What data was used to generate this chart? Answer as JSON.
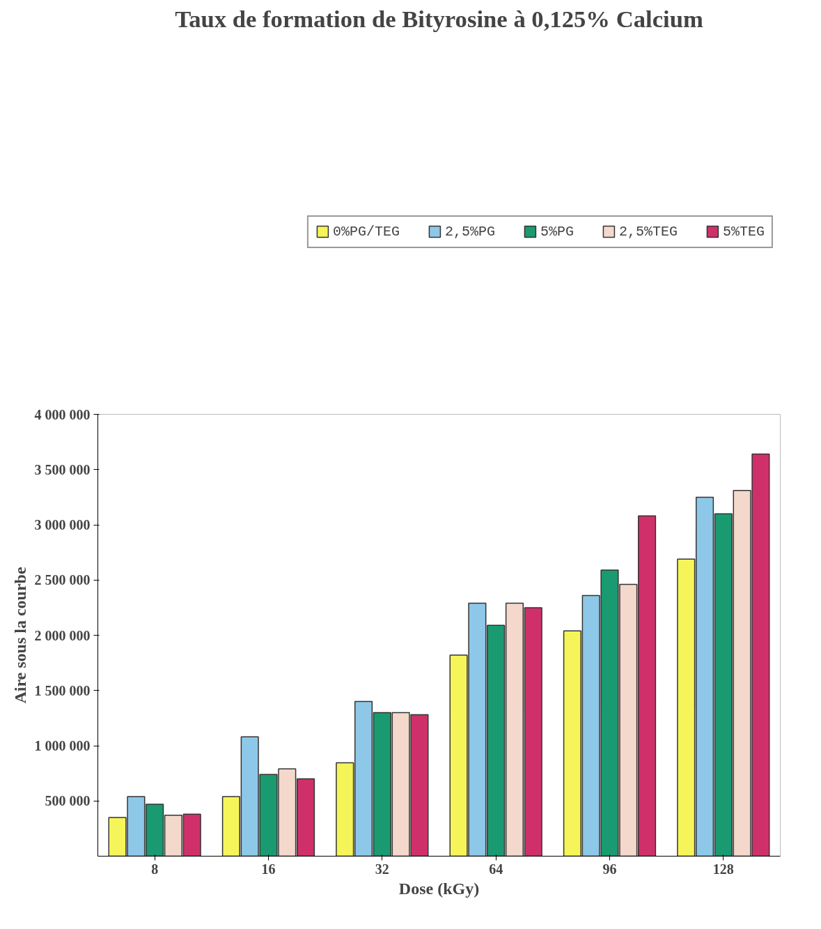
{
  "chart_data": {
    "type": "bar",
    "title": "Taux de formation de Bityrosine à 0,125% Calcium",
    "xlabel": "Dose (kGy)",
    "ylabel": "Aire sous la courbe",
    "categories": [
      "8",
      "16",
      "32",
      "64",
      "96",
      "128"
    ],
    "series": [
      {
        "name": "0%PG/TEG",
        "color": "#f5f55a",
        "values": [
          350000,
          540000,
          845000,
          1820000,
          2040000,
          2690000
        ]
      },
      {
        "name": "2,5%PG",
        "color": "#8ec8e8",
        "values": [
          540000,
          1080000,
          1400000,
          2290000,
          2360000,
          3250000
        ]
      },
      {
        "name": "5%PG",
        "color": "#1a9a70",
        "values": [
          470000,
          740000,
          1300000,
          2090000,
          2590000,
          3100000
        ]
      },
      {
        "name": "2,5%TEG",
        "color": "#f4d8cc",
        "values": [
          370000,
          790000,
          1300000,
          2290000,
          2460000,
          3310000
        ]
      },
      {
        "name": "5%TEG",
        "color": "#d0306a",
        "values": [
          380000,
          700000,
          1280000,
          2250000,
          3080000,
          3640000
        ]
      }
    ],
    "ylim": [
      0,
      4000000
    ],
    "yticks": [
      {
        "value": 500000,
        "label": "500 000"
      },
      {
        "value": 1000000,
        "label": "1 000 000"
      },
      {
        "value": 1500000,
        "label": "1 500 000"
      },
      {
        "value": 2000000,
        "label": "2 000 000"
      },
      {
        "value": 2500000,
        "label": "2 500 000"
      },
      {
        "value": 3000000,
        "label": "3 000 000"
      },
      {
        "value": 3500000,
        "label": "3 500 000"
      },
      {
        "value": 4000000,
        "label": "4 000 000"
      }
    ],
    "legend": "top",
    "grid": false
  }
}
